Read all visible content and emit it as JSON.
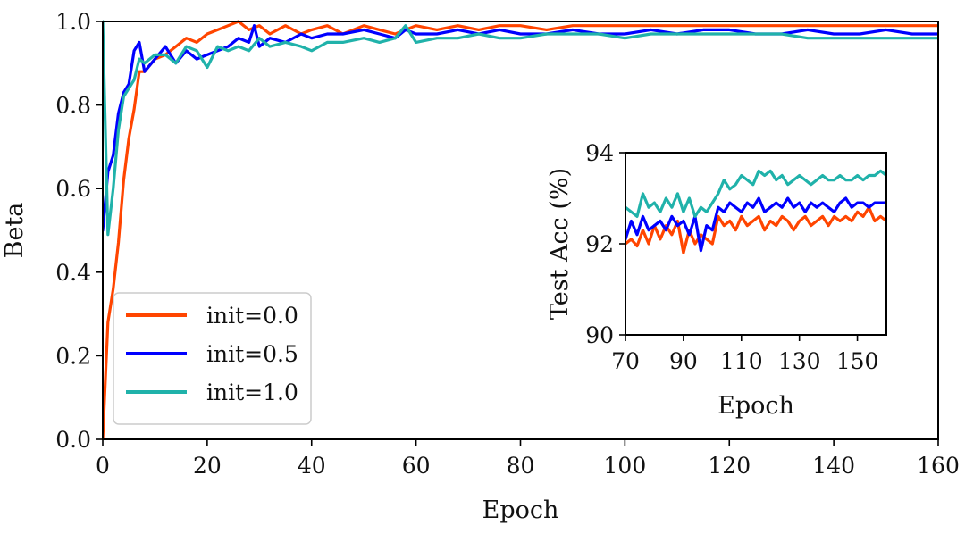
{
  "chart_data": [
    {
      "type": "line",
      "title": "",
      "xlabel": "Epoch",
      "ylabel": "Beta",
      "xlim": [
        0,
        160
      ],
      "ylim": [
        0.0,
        1.0
      ],
      "xticks": [
        0,
        20,
        40,
        60,
        80,
        100,
        120,
        140,
        160
      ],
      "xtick_labels": [
        "0",
        "20",
        "40",
        "60",
        "80",
        "100",
        "120",
        "140",
        "160"
      ],
      "yticks": [
        0.0,
        0.2,
        0.4,
        0.6,
        0.8,
        1.0
      ],
      "ytick_labels": [
        "0.0",
        "0.2",
        "0.4",
        "0.6",
        "0.8",
        "1.0"
      ],
      "grid": false,
      "legend_position": "bottom-left",
      "series": [
        {
          "name": "init=0.0",
          "color": "#ff4500",
          "x": [
            0,
            1,
            2,
            3,
            4,
            5,
            6,
            7,
            8,
            10,
            12,
            14,
            16,
            18,
            20,
            22,
            24,
            26,
            28,
            30,
            32,
            35,
            38,
            40,
            43,
            46,
            50,
            53,
            56,
            60,
            64,
            68,
            72,
            76,
            80,
            85,
            90,
            95,
            100,
            105,
            110,
            115,
            120,
            125,
            130,
            135,
            140,
            145,
            150,
            155,
            160
          ],
          "y": [
            0.0,
            0.28,
            0.36,
            0.47,
            0.62,
            0.72,
            0.79,
            0.88,
            0.88,
            0.91,
            0.92,
            0.94,
            0.96,
            0.95,
            0.97,
            0.98,
            0.99,
            1.0,
            0.98,
            0.99,
            0.97,
            0.99,
            0.97,
            0.98,
            0.99,
            0.97,
            0.99,
            0.98,
            0.97,
            0.99,
            0.98,
            0.99,
            0.98,
            0.99,
            0.99,
            0.98,
            0.99,
            0.99,
            0.99,
            0.99,
            0.99,
            0.99,
            0.99,
            0.99,
            0.99,
            0.99,
            0.99,
            0.99,
            0.99,
            0.99,
            0.99
          ]
        },
        {
          "name": "init=0.5",
          "color": "#0000ff",
          "x": [
            0,
            1,
            2,
            3,
            4,
            5,
            6,
            7,
            8,
            10,
            12,
            14,
            16,
            18,
            20,
            22,
            24,
            26,
            28,
            29,
            30,
            32,
            35,
            38,
            40,
            43,
            46,
            50,
            53,
            56,
            58,
            60,
            64,
            68,
            72,
            76,
            80,
            85,
            90,
            95,
            100,
            105,
            110,
            115,
            120,
            125,
            130,
            135,
            140,
            145,
            150,
            155,
            160
          ],
          "y": [
            0.5,
            0.64,
            0.68,
            0.78,
            0.83,
            0.85,
            0.93,
            0.95,
            0.88,
            0.91,
            0.94,
            0.9,
            0.93,
            0.91,
            0.92,
            0.93,
            0.94,
            0.96,
            0.95,
            0.99,
            0.94,
            0.96,
            0.95,
            0.97,
            0.96,
            0.97,
            0.97,
            0.98,
            0.97,
            0.96,
            0.98,
            0.97,
            0.97,
            0.98,
            0.97,
            0.98,
            0.97,
            0.97,
            0.98,
            0.97,
            0.97,
            0.98,
            0.97,
            0.98,
            0.98,
            0.97,
            0.97,
            0.98,
            0.97,
            0.97,
            0.98,
            0.97,
            0.97
          ]
        },
        {
          "name": "init=1.0",
          "color": "#20b2aa",
          "x": [
            0,
            1,
            2,
            3,
            4,
            5,
            6,
            7,
            8,
            10,
            12,
            14,
            16,
            18,
            20,
            22,
            24,
            26,
            28,
            30,
            32,
            35,
            38,
            40,
            43,
            46,
            50,
            53,
            56,
            58,
            60,
            64,
            68,
            72,
            76,
            80,
            85,
            90,
            95,
            100,
            105,
            110,
            115,
            120,
            125,
            130,
            135,
            140,
            145,
            150,
            155,
            160
          ],
          "y": [
            1.0,
            0.49,
            0.6,
            0.74,
            0.82,
            0.84,
            0.86,
            0.91,
            0.9,
            0.92,
            0.92,
            0.9,
            0.94,
            0.93,
            0.89,
            0.94,
            0.93,
            0.94,
            0.93,
            0.96,
            0.94,
            0.95,
            0.94,
            0.93,
            0.95,
            0.95,
            0.96,
            0.95,
            0.96,
            0.99,
            0.95,
            0.96,
            0.96,
            0.97,
            0.96,
            0.96,
            0.97,
            0.97,
            0.97,
            0.96,
            0.97,
            0.97,
            0.97,
            0.97,
            0.97,
            0.97,
            0.96,
            0.96,
            0.96,
            0.96,
            0.96,
            0.96
          ]
        }
      ]
    },
    {
      "type": "line",
      "title": "",
      "xlabel": "Epoch",
      "ylabel": "Test Acc (%)",
      "xlim": [
        70,
        160
      ],
      "ylim": [
        90,
        94
      ],
      "xticks": [
        70,
        90,
        110,
        130,
        150
      ],
      "xtick_labels": [
        "70",
        "90",
        "110",
        "130",
        "150"
      ],
      "yticks": [
        90,
        92,
        94
      ],
      "ytick_labels": [
        "90",
        "92",
        "94"
      ],
      "grid": false,
      "series": [
        {
          "color": "#ff4500",
          "x": [
            70,
            72,
            74,
            76,
            78,
            80,
            82,
            84,
            86,
            88,
            90,
            92,
            94,
            96,
            98,
            100,
            102,
            104,
            106,
            108,
            110,
            112,
            114,
            116,
            118,
            120,
            122,
            124,
            126,
            128,
            130,
            132,
            134,
            136,
            138,
            140,
            142,
            144,
            146,
            148,
            150,
            152,
            154,
            156,
            158,
            160
          ],
          "y": [
            92.0,
            92.1,
            91.95,
            92.3,
            92.0,
            92.4,
            92.1,
            92.4,
            92.2,
            92.5,
            91.8,
            92.3,
            92.0,
            92.2,
            92.1,
            92.0,
            92.6,
            92.4,
            92.5,
            92.3,
            92.6,
            92.4,
            92.5,
            92.6,
            92.3,
            92.5,
            92.4,
            92.6,
            92.5,
            92.3,
            92.5,
            92.6,
            92.4,
            92.5,
            92.6,
            92.4,
            92.6,
            92.5,
            92.6,
            92.5,
            92.7,
            92.6,
            92.8,
            92.5,
            92.6,
            92.5
          ]
        },
        {
          "color": "#0000ff",
          "x": [
            70,
            72,
            74,
            76,
            78,
            80,
            82,
            84,
            86,
            88,
            90,
            92,
            94,
            96,
            98,
            100,
            102,
            104,
            106,
            108,
            110,
            112,
            114,
            116,
            118,
            120,
            122,
            124,
            126,
            128,
            130,
            132,
            134,
            136,
            138,
            140,
            142,
            144,
            146,
            148,
            150,
            152,
            154,
            156,
            158,
            160
          ],
          "y": [
            92.1,
            92.5,
            92.2,
            92.6,
            92.3,
            92.4,
            92.5,
            92.3,
            92.6,
            92.4,
            92.5,
            92.2,
            92.6,
            91.85,
            92.4,
            92.3,
            92.8,
            92.7,
            92.9,
            92.8,
            92.7,
            92.9,
            92.8,
            93.0,
            92.7,
            92.8,
            92.9,
            92.8,
            93.0,
            92.8,
            92.9,
            92.7,
            92.9,
            92.8,
            92.9,
            92.8,
            92.7,
            92.9,
            93.0,
            92.8,
            92.9,
            92.9,
            92.8,
            92.9,
            92.9,
            92.9
          ]
        },
        {
          "color": "#20b2aa",
          "x": [
            70,
            72,
            74,
            76,
            78,
            80,
            82,
            84,
            86,
            88,
            90,
            92,
            94,
            96,
            98,
            100,
            102,
            104,
            106,
            108,
            110,
            112,
            114,
            116,
            118,
            120,
            122,
            124,
            126,
            128,
            130,
            132,
            134,
            136,
            138,
            140,
            142,
            144,
            146,
            148,
            150,
            152,
            154,
            156,
            158,
            160
          ],
          "y": [
            92.8,
            92.7,
            92.6,
            93.1,
            92.8,
            92.9,
            92.7,
            93.0,
            92.8,
            93.1,
            92.7,
            93.0,
            92.6,
            92.8,
            92.7,
            92.9,
            93.1,
            93.4,
            93.2,
            93.3,
            93.5,
            93.4,
            93.3,
            93.6,
            93.5,
            93.6,
            93.4,
            93.5,
            93.3,
            93.4,
            93.5,
            93.4,
            93.3,
            93.4,
            93.5,
            93.4,
            93.4,
            93.5,
            93.4,
            93.4,
            93.5,
            93.4,
            93.5,
            93.5,
            93.6,
            93.5
          ]
        }
      ]
    }
  ]
}
